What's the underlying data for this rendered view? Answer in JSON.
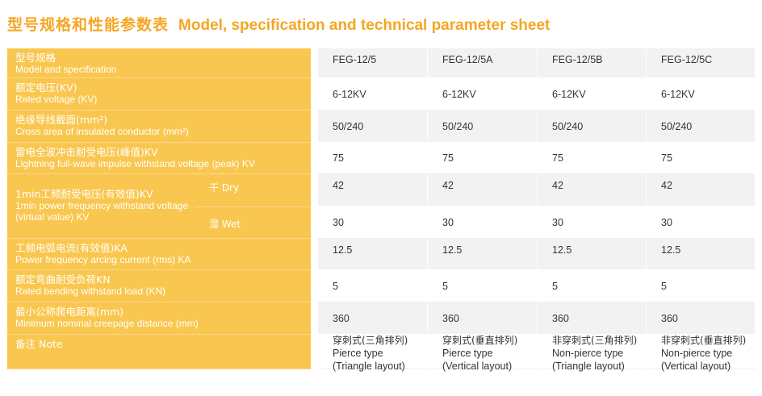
{
  "heading": {
    "zh": "型号规格和性能参数表",
    "en": "Model, specification and technical parameter sheet"
  },
  "rows": [
    {
      "zh": "型号规格",
      "en": "Model and specification",
      "values": [
        "FEG-12/5",
        "FEG-12/5A",
        "FEG-12/5B",
        "FEG-12/5C"
      ]
    },
    {
      "zh": "额定电压(KV)",
      "en": "Rated voltage (KV)",
      "values": [
        "6-12KV",
        "6-12KV",
        "6-12KV",
        "6-12KV"
      ]
    },
    {
      "zh": "绝缘导线截面(mm²)",
      "en": "Cross area of insulated conductor (mm²)",
      "values": [
        "50/240",
        "50/240",
        "50/240",
        "50/240"
      ]
    },
    {
      "zh": "雷电全波冲击耐受电压(峰值)KV",
      "en": "Lightning full-wave impulse withstand voltage (peak) KV",
      "values": [
        "75",
        "75",
        "75",
        "75"
      ]
    }
  ],
  "freq": {
    "zh": "1min工频耐受电压(有效值)KV",
    "en": "1min power frequency withstand voltage (virtual value) KV",
    "dry_label": "干 Dry",
    "wet_label": "湿 Wet",
    "dry_values": [
      "42",
      "42",
      "42",
      "42"
    ],
    "wet_values": [
      "30",
      "30",
      "30",
      "30"
    ]
  },
  "rows2": [
    {
      "zh": "工频电弧电流(有效值)KA",
      "en": "Power frequency arcing current (rms) KA",
      "values": [
        "12.5",
        "12.5",
        "12.5",
        "12.5"
      ]
    },
    {
      "zh": "额定弯曲耐受负荷KN",
      "en": "Rated bending withstand load (KN)",
      "values": [
        "5",
        "5",
        "5",
        "5"
      ]
    },
    {
      "zh": "最小公称爬电距离(mm)",
      "en": "Minimum nominal creepage distance (mm)",
      "values": [
        "360",
        "360",
        "360",
        "360"
      ]
    }
  ],
  "note": {
    "label": "备注 Note",
    "values": [
      {
        "zh": "穿刺式(三角排列)",
        "en1": "Pierce type",
        "en2": "(Triangle layout)"
      },
      {
        "zh": "穿刺式(垂直排列)",
        "en1": "Pierce type",
        "en2": "(Vertical layout)"
      },
      {
        "zh": "非穿刺式(三角排列)",
        "en1": "Non-pierce type",
        "en2": "(Triangle layout)"
      },
      {
        "zh": "非穿刺式(垂直排列)",
        "en1": "Non-pierce type",
        "en2": "(Vertical layout)"
      }
    ]
  }
}
